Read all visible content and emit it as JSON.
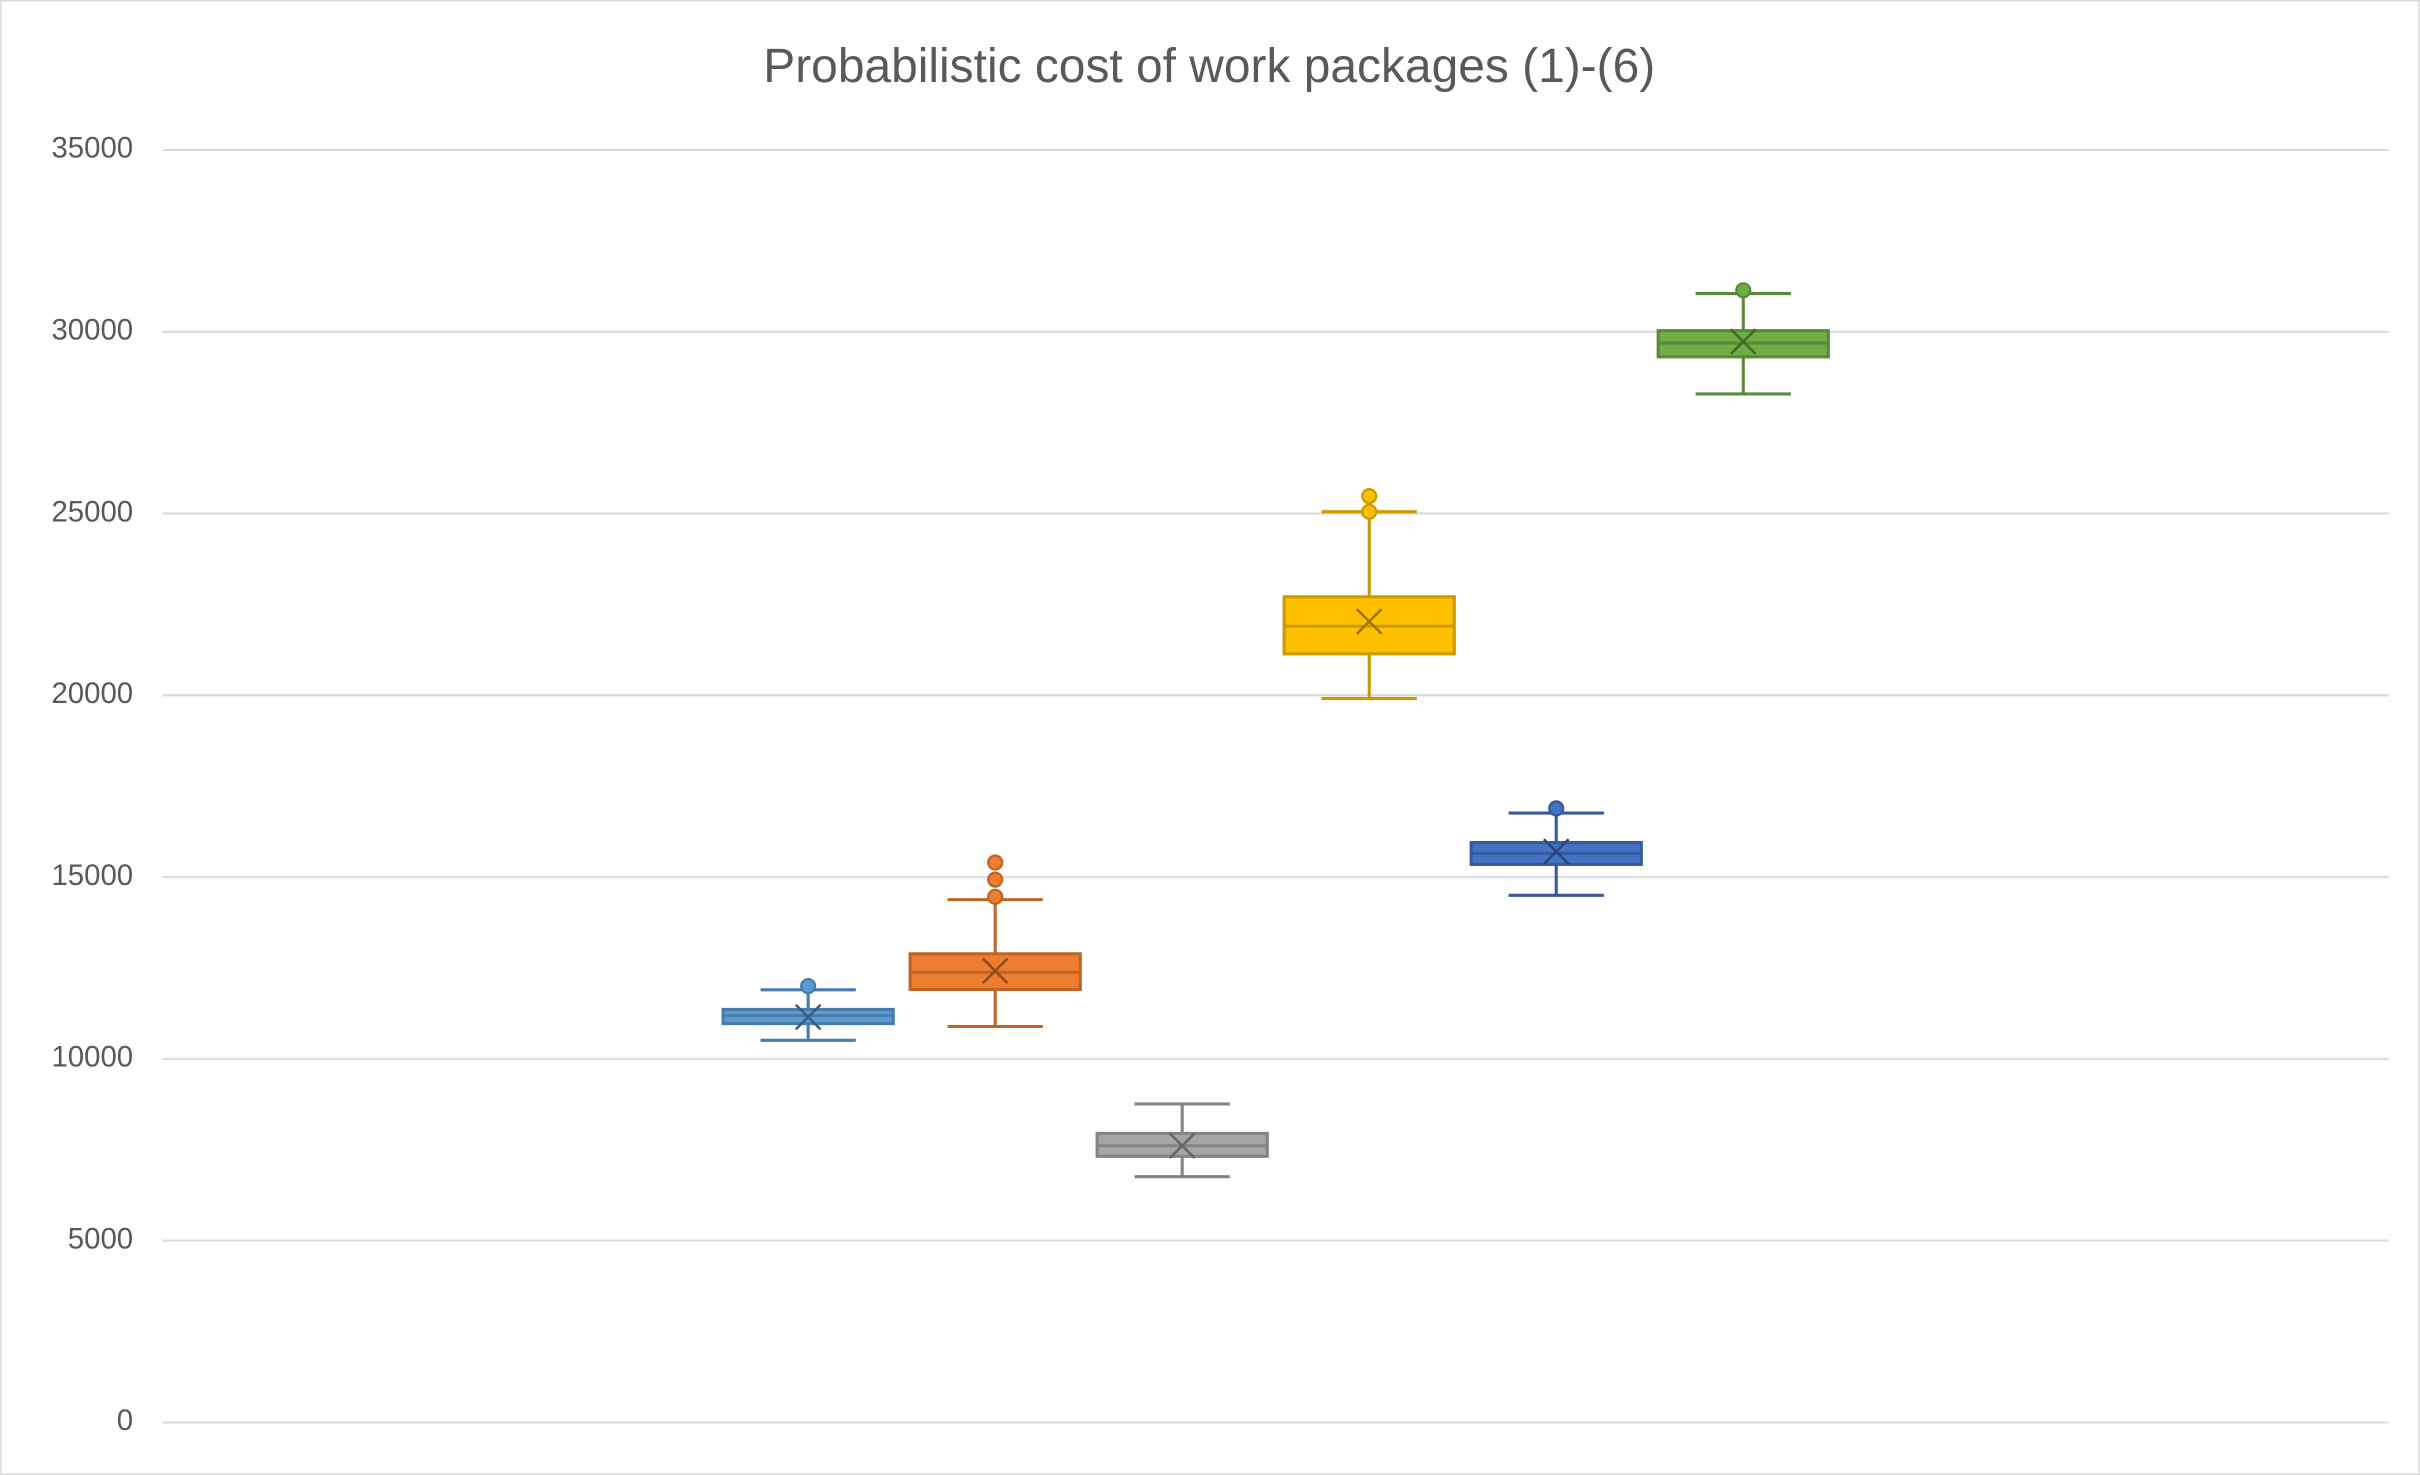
{
  "chart_data": {
    "type": "box",
    "title": "Probabilistic cost of work packages (1)-(6)",
    "categories": [
      null
    ],
    "ylim": [
      0,
      35000
    ],
    "yticks": [
      0,
      5000,
      10000,
      15000,
      20000,
      25000,
      30000,
      35000
    ],
    "grid": true,
    "series": [
      {
        "color": "#5b9bd5",
        "min": [
          10510
        ],
        "q1": [
          10970
        ],
        "median": [
          11190
        ],
        "q3": [
          11360
        ],
        "max": [
          11900
        ],
        "mean": [
          11150
        ],
        "outliers": [
          [
            12000
          ]
        ]
      },
      {
        "color": "#ed7d31",
        "min": [
          10890
        ],
        "q1": [
          11910
        ],
        "median": [
          12380
        ],
        "q3": [
          12890
        ],
        "max": [
          14380
        ],
        "mean": [
          12420
        ],
        "outliers": [
          [
            14460,
            14930,
            15400
          ]
        ]
      },
      {
        "color": "#a5a5a5",
        "min": [
          6760
        ],
        "q1": [
          7320
        ],
        "median": [
          7610
        ],
        "q3": [
          7950
        ],
        "max": [
          8760
        ],
        "mean": [
          7610
        ],
        "outliers": [
          []
        ]
      },
      {
        "color": "#ffc000",
        "min": [
          19910
        ],
        "q1": [
          21140
        ],
        "median": [
          21900
        ],
        "q3": [
          22710
        ],
        "max": [
          25050
        ],
        "mean": [
          22030
        ],
        "outliers": [
          [
            25050,
            25480
          ]
        ]
      },
      {
        "color": "#4472c4",
        "min": [
          14500
        ],
        "q1": [
          15350
        ],
        "median": [
          15650
        ],
        "q3": [
          15950
        ],
        "max": [
          16760
        ],
        "mean": [
          15700
        ],
        "outliers": [
          [
            16890
          ]
        ]
      },
      {
        "color": "#70ad47",
        "min": [
          28290
        ],
        "q1": [
          29310
        ],
        "median": [
          29690
        ],
        "q3": [
          30030
        ],
        "max": [
          31050
        ],
        "mean": [
          29730
        ],
        "outliers": [
          [
            31140
          ]
        ]
      }
    ]
  }
}
